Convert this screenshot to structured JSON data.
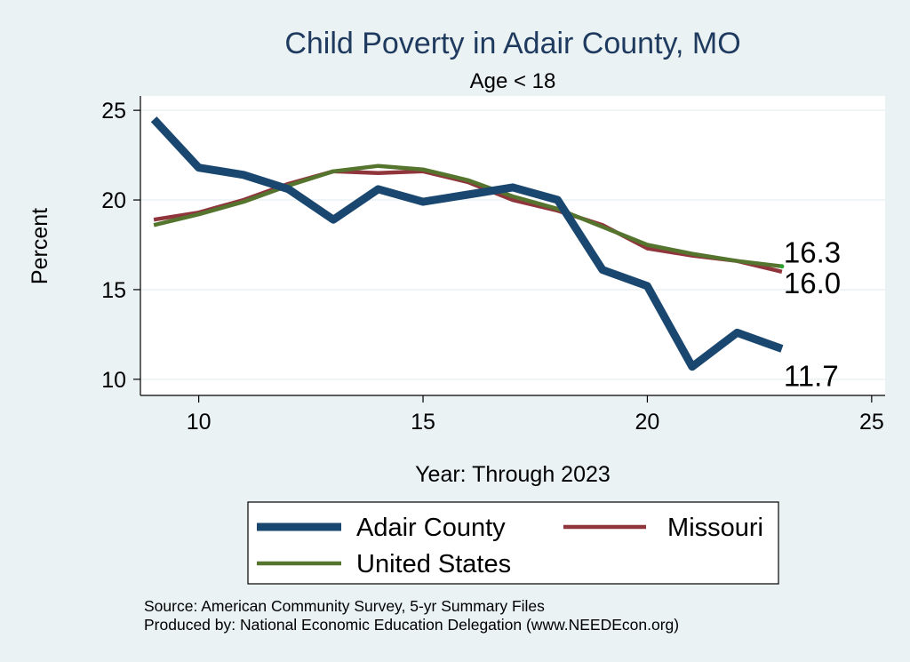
{
  "chart_data": {
    "type": "line",
    "title": "Child Poverty in Adair County, MO",
    "subtitle": "Age < 18",
    "xlabel": "Year: Through 2023",
    "ylabel": "Percent",
    "xlim": [
      8.7,
      25.3
    ],
    "ylim": [
      9.1,
      25.8
    ],
    "xticks": [
      "10",
      "15",
      "20",
      "25"
    ],
    "yticks": [
      "10",
      "15",
      "20",
      "25"
    ],
    "grid": true,
    "legend_position": "bottom",
    "series": [
      {
        "name": "Adair County",
        "color": "#1a476f",
        "x": [
          9,
          10,
          11,
          12,
          13,
          14,
          15,
          16,
          17,
          18,
          19,
          20,
          21,
          22,
          23
        ],
        "values": [
          24.5,
          21.8,
          21.4,
          20.6,
          18.9,
          20.6,
          19.9,
          20.3,
          20.7,
          20.0,
          16.1,
          15.2,
          10.7,
          12.6,
          11.7
        ],
        "end_label": "11.7"
      },
      {
        "name": "Missouri",
        "color": "#90353b",
        "x": [
          9,
          10,
          11,
          12,
          13,
          14,
          15,
          16,
          17,
          18,
          19,
          20,
          21,
          22,
          23
        ],
        "values": [
          18.9,
          19.3,
          20.0,
          20.9,
          21.6,
          21.5,
          21.6,
          21.0,
          20.0,
          19.4,
          18.6,
          17.3,
          16.9,
          16.6,
          16.0
        ],
        "end_label": "16.0"
      },
      {
        "name": "United States",
        "color": "#55752f",
        "x": [
          9,
          10,
          11,
          12,
          13,
          14,
          15,
          16,
          17,
          18,
          19,
          20,
          21,
          22,
          23
        ],
        "values": [
          18.6,
          19.2,
          19.9,
          20.8,
          21.6,
          21.9,
          21.7,
          21.1,
          20.2,
          19.5,
          18.5,
          17.5,
          17.0,
          16.6,
          16.3
        ],
        "end_label": "16.3"
      }
    ]
  },
  "source": {
    "line1": "Source: American Community Survey, 5-yr Summary Files",
    "line2": "Produced by: National Economic Education Delegation (www.NEEDEcon.org)"
  }
}
